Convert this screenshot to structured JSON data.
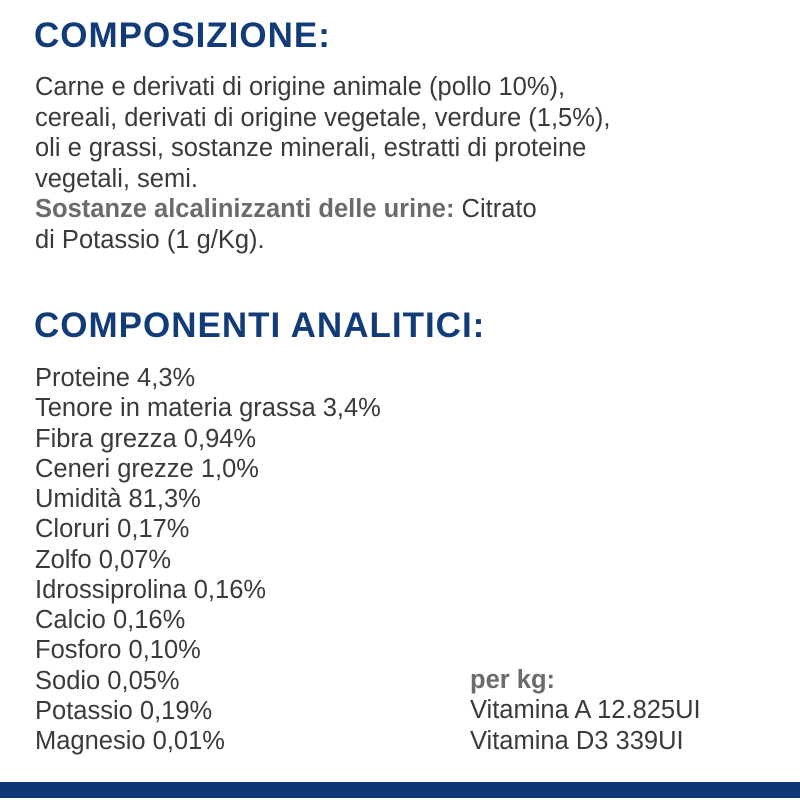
{
  "composizione": {
    "title": "COMPOSIZIONE:",
    "lines": [
      "Carne e derivati di origine animale (pollo 10%),",
      "cereali, derivati di origine vegetale, verdure (1,5%),",
      "oli e grassi, sostanze minerali, estratti di proteine",
      "vegetali, semi."
    ],
    "additive_label": "Sostanze alcalinizzanti delle urine:",
    "additive_value": " Citrato",
    "additive_value_2": "di Potassio (1 g/Kg)."
  },
  "componenti": {
    "title": "COMPONENTI ANALITICI:",
    "items": [
      "Proteine 4,3%",
      "Tenore in materia grassa 3,4%",
      "Fibra grezza 0,94%",
      "Ceneri grezze 1,0%",
      "Umidità 81,3%",
      "Cloruri 0,17%",
      "Zolfo 0,07%",
      "Idrossiprolina 0,16%",
      "Calcio 0,16%",
      "Fosforo 0,10%",
      "Sodio 0,05%",
      "Potassio 0,19%",
      "Magnesio 0,01%"
    ],
    "per_kg": {
      "label": "per kg:",
      "items": [
        "Vitamina A 12.825UI",
        "Vitamina D3 339UI"
      ]
    }
  },
  "colors": {
    "heading": "#123c78",
    "bar": "#0d3877",
    "text": "#3a3a3a"
  }
}
